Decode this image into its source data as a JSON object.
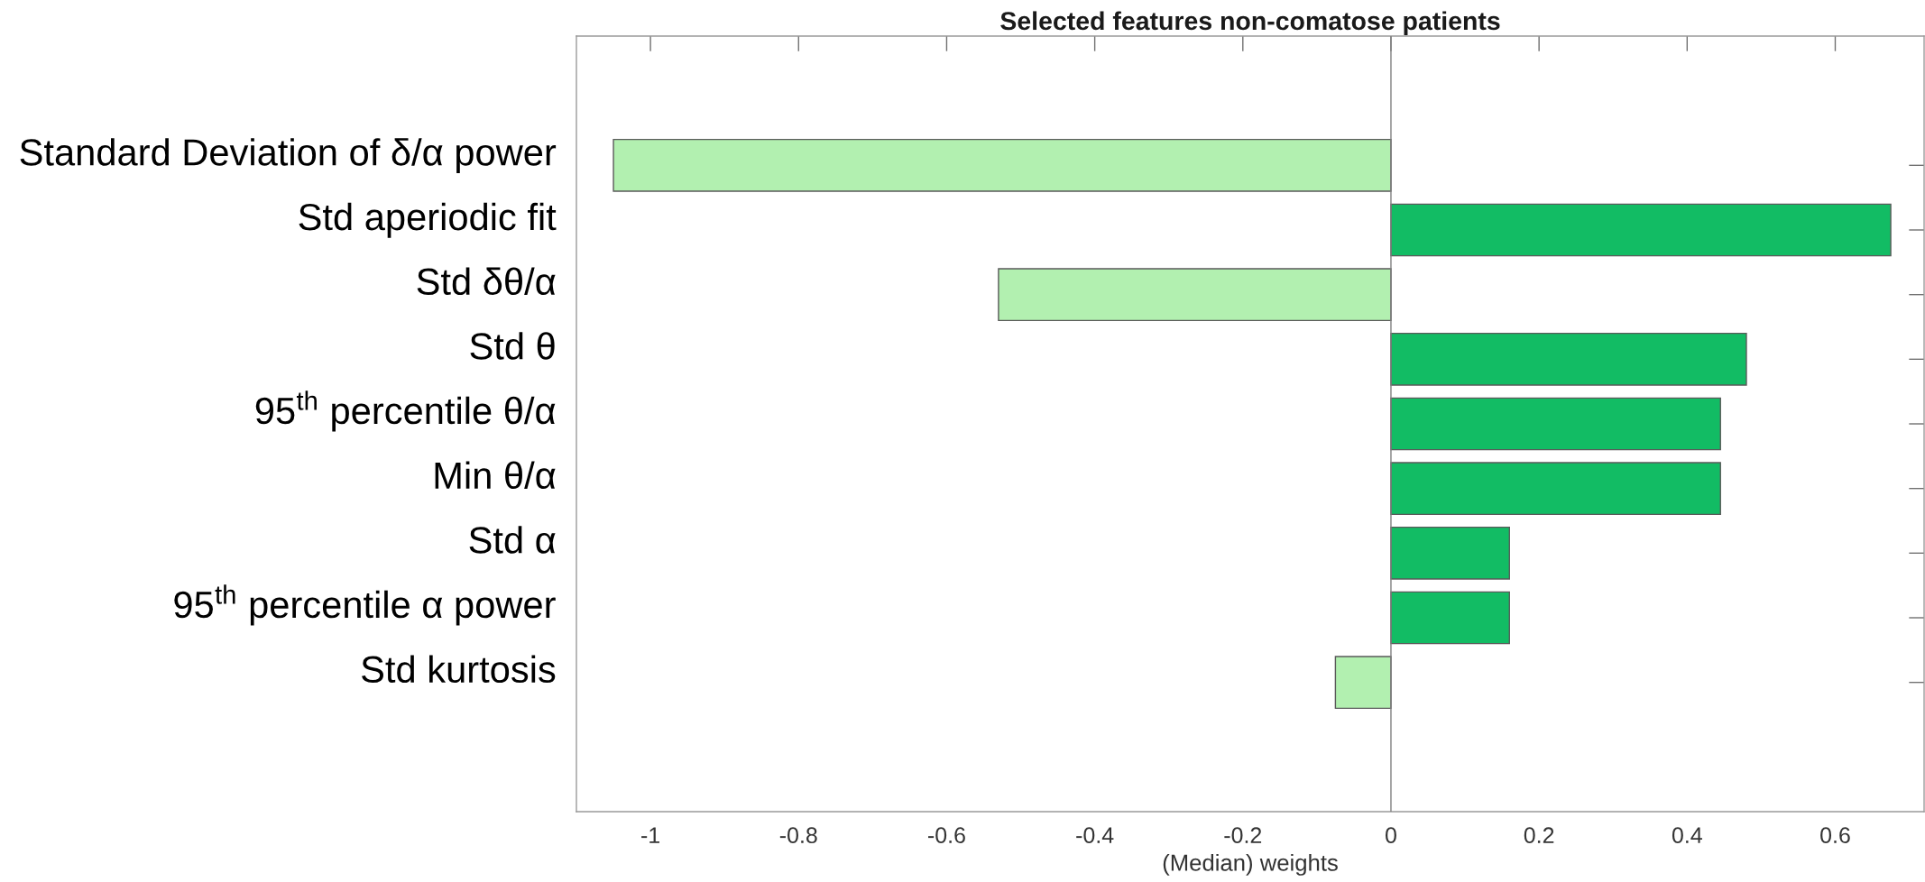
{
  "chart_data": {
    "type": "bar",
    "orientation": "horizontal",
    "title": "Selected features non-comatose patients",
    "xlabel": "(Median) weights",
    "categories": [
      "Standard Deviation of δ/α power",
      "Std aperiodic fit",
      "Std δθ/α",
      "Std θ",
      "95$^{th}$ percentile θ/α",
      "Min θ/α",
      "Std α",
      "95$^{th}$ percentile α power",
      "Std kurtosis"
    ],
    "values": [
      -1.05,
      0.675,
      -0.53,
      0.48,
      0.445,
      0.445,
      0.16,
      0.16,
      -0.075
    ],
    "colors": [
      "#b2f0b0",
      "#12bc64",
      "#b2f0b0",
      "#12bc64",
      "#12bc64",
      "#12bc64",
      "#12bc64",
      "#12bc64",
      "#b2f0b0"
    ],
    "xlim": [
      -1.1,
      0.72
    ],
    "xticks": [
      -1,
      -0.8,
      -0.6,
      -0.4,
      -0.2,
      0,
      0.2,
      0.4,
      0.6
    ],
    "ref_lines": [
      {
        "axis": "x",
        "value": 0,
        "color": "#808080"
      }
    ]
  }
}
